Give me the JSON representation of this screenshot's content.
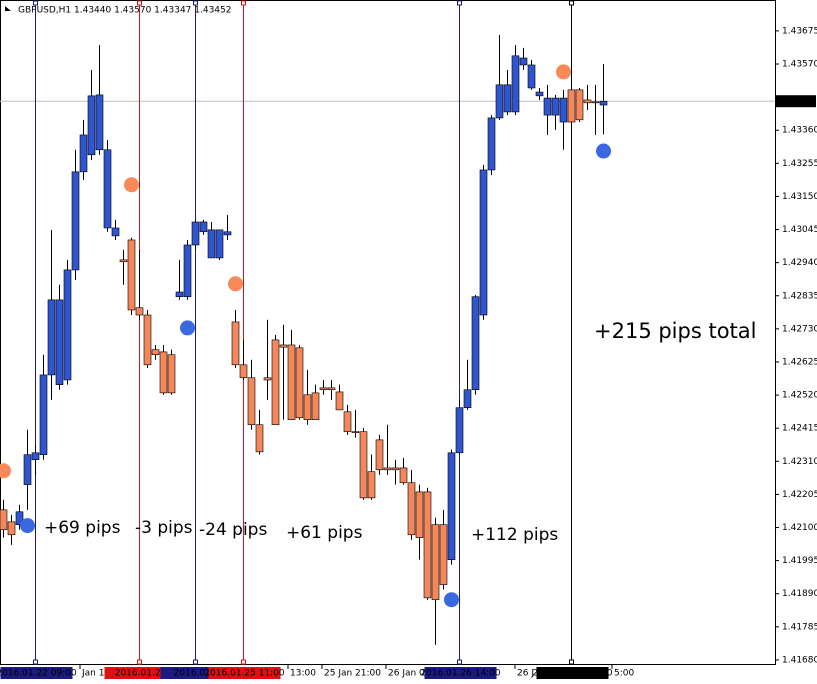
{
  "chart_data": {
    "type": "candlestick",
    "title": "GBPUSD,H1  1.43440 1.43570 1.43347 1.43452",
    "open": [
      1.42156,
      1.42118,
      1.42109,
      1.42236,
      1.42315,
      1.42331,
      1.42584,
      1.42553,
      1.42568,
      1.42917,
      1.43228,
      1.43282,
      1.43298,
      1.43298,
      1.4305,
      1.42949,
      1.43012,
      1.42797,
      1.42774,
      1.42664,
      1.42657,
      1.42648,
      1.42832,
      1.42832,
      1.42996,
      1.43038,
      1.43044,
      1.42955,
      1.43038,
      1.42752,
      1.42616,
      1.42575,
      1.42426,
      1.42568,
      1.42695,
      1.42679,
      1.42679,
      1.4267,
      1.42521,
      1.42527,
      1.42543,
      1.42543,
      1.4253,
      1.42467,
      1.42404,
      1.42404,
      1.42277,
      1.42378,
      1.42283,
      1.42289,
      1.42289,
      1.42242,
      1.42213,
      1.42213,
      1.42109,
      1.42109,
      1.41998,
      1.42337,
      1.4248,
      1.42537,
      1.42774,
      1.43234,
      1.43399,
      1.43418,
      1.43418,
      1.43589,
      1.43567,
      1.43469,
      1.43408,
      1.43462,
      1.43462,
      1.43488,
      1.43488,
      1.43456,
      1.4345,
      1.4344
    ],
    "high": [
      1.42188,
      1.4214,
      1.42172,
      1.4241,
      1.42362,
      1.42648,
      1.43044,
      1.4287,
      1.42949,
      1.43298,
      1.43393,
      1.43551,
      1.4363,
      1.43329,
      1.43076,
      1.42981,
      1.43019,
      1.42981,
      1.4279,
      1.42679,
      1.42679,
      1.42664,
      1.42949,
      1.43012,
      1.43076,
      1.43076,
      1.43069,
      1.43044,
      1.43091,
      1.4279,
      1.42695,
      1.42632,
      1.42473,
      1.42759,
      1.42711,
      1.42743,
      1.42727,
      1.42679,
      1.426,
      1.42553,
      1.42568,
      1.42568,
      1.42553,
      1.42489,
      1.42473,
      1.42416,
      1.42331,
      1.42394,
      1.42426,
      1.42315,
      1.42321,
      1.42283,
      1.42236,
      1.42226,
      1.42131,
      1.42156,
      1.42347,
      1.42505,
      1.42632,
      1.42838,
      1.4325,
      1.43408,
      1.43662,
      1.43551,
      1.4363,
      1.43621,
      1.43583,
      1.43494,
      1.43504,
      1.43472,
      1.43488,
      1.43504,
      1.43494,
      1.43504,
      1.43504,
      1.4357
    ],
    "low": [
      1.42068,
      1.42045,
      1.42093,
      1.42156,
      1.42267,
      1.42315,
      1.42505,
      1.42537,
      1.42553,
      1.42885,
      1.43202,
      1.43266,
      1.43282,
      1.43038,
      1.43012,
      1.4287,
      1.42774,
      1.42759,
      1.42606,
      1.42632,
      1.42521,
      1.42521,
      1.42822,
      1.42822,
      1.42981,
      1.43028,
      1.42955,
      1.42949,
      1.43012,
      1.42606,
      1.42568,
      1.4241,
      1.42331,
      1.42505,
      1.42426,
      1.42442,
      1.42442,
      1.42442,
      1.42426,
      1.42442,
      1.42521,
      1.42505,
      1.42473,
      1.42394,
      1.42385,
      1.42188,
      1.42188,
      1.42267,
      1.42267,
      1.42236,
      1.42236,
      1.42061,
      1.41998,
      1.41871,
      1.41728,
      1.41903,
      1.41982,
      1.42331,
      1.42473,
      1.42521,
      1.42759,
      1.43218,
      1.43393,
      1.43408,
      1.43408,
      1.43551,
      1.43488,
      1.43456,
      1.43345,
      1.43361,
      1.43298,
      1.43361,
      1.43386,
      1.43424,
      1.43345,
      1.43347
    ],
    "close": [
      1.42093,
      1.42077,
      1.4215,
      1.42331,
      1.42337,
      1.42584,
      1.42822,
      1.42822,
      1.42917,
      1.43228,
      1.43345,
      1.43469,
      1.43472,
      1.4305,
      1.43025,
      1.42943,
      1.4279,
      1.42774,
      1.42616,
      1.42648,
      1.42527,
      1.42527,
      1.42847,
      1.42996,
      1.43069,
      1.43069,
      1.42955,
      1.43044,
      1.43028,
      1.42616,
      1.42575,
      1.42426,
      1.4234,
      1.42575,
      1.42426,
      1.42672,
      1.42442,
      1.42448,
      1.42442,
      1.42442,
      1.42537,
      1.42537,
      1.42473,
      1.42404,
      1.42401,
      1.42194,
      1.42194,
      1.42283,
      1.42289,
      1.42283,
      1.42242,
      1.42077,
      1.42068,
      1.41877,
      1.41871,
      1.41919,
      1.42337,
      1.4248,
      1.42537,
      1.42832,
      1.43234,
      1.43399,
      1.43504,
      1.43504,
      1.43596,
      1.43567,
      1.43494,
      1.43481,
      1.43462,
      1.43408,
      1.43386,
      1.43386,
      1.43393,
      1.43447,
      1.43447,
      1.43452
    ],
    "colors": [
      "#f4875a",
      "#f4875a",
      "#2f55cf",
      "#2f55cf",
      "#2f55cf",
      "#2f55cf",
      "#2f55cf",
      "#2f55cf",
      "#2f55cf",
      "#2f55cf",
      "#2f55cf",
      "#2f55cf",
      "#2f55cf",
      "#2f55cf",
      "#2f55cf",
      "#f4875a",
      "#f4875a",
      "#f4875a",
      "#f4875a",
      "#f4875a",
      "#f4875a",
      "#f4875a",
      "#2f55cf",
      "#2f55cf",
      "#2f55cf",
      "#2f55cf",
      "#2f55cf",
      "#2f55cf",
      "#2f55cf",
      "#f4875a",
      "#f4875a",
      "#f4875a",
      "#f4875a",
      "#f4875a",
      "#f4875a",
      "#f4875a",
      "#f4875a",
      "#f4875a",
      "#f4875a",
      "#f4875a",
      "#f4875a",
      "#f4875a",
      "#f4875a",
      "#f4875a",
      "#f4875a",
      "#f4875a",
      "#f4875a",
      "#f4875a",
      "#f4875a",
      "#f4875a",
      "#f4875a",
      "#f4875a",
      "#f4875a",
      "#f4875a",
      "#f4875a",
      "#f4875a",
      "#2f55cf",
      "#2f55cf",
      "#2f55cf",
      "#2f55cf",
      "#2f55cf",
      "#2f55cf",
      "#2f55cf",
      "#2f55cf",
      "#2f55cf",
      "#2f55cf",
      "#2f55cf",
      "#2f55cf",
      "#2f55cf",
      "#2f55cf",
      "#2f55cf",
      "#f4875a",
      "#f4875a",
      "#f4875a",
      "#f4875a",
      "#2f55cf"
    ],
    "ylim": [
      1.41664,
      1.43773
    ],
    "yticks": [
      1.43675,
      {
        "value": 1.4357,
        "label": "1.43570"
      },
      {
        "value": 1.4336,
        "label": "1.43360"
      },
      1.43255,
      {
        "value": 1.4315,
        "label": "1.43150"
      },
      1.43045,
      {
        "value": 1.4294,
        "label": "1.42940"
      },
      1.42835,
      {
        "value": 1.4273,
        "label": "1.42730"
      },
      1.42625,
      {
        "value": 1.4252,
        "label": "1.42520"
      },
      1.42415,
      {
        "value": 1.4231,
        "label": "1.42310"
      },
      1.42205,
      {
        "value": 1.421,
        "label": "1.42100"
      },
      1.41995,
      {
        "value": 1.4189,
        "label": "1.41890"
      },
      1.41785,
      {
        "value": 1.4168,
        "label": "1.41680"
      }
    ],
    "current_price": {
      "value": 1.43452,
      "label": "1.43452"
    },
    "xaxis_labels": [
      "Jan 1",
      "13:00",
      "25 Jan 21:00",
      "26 Jan 0",
      "26 J",
      "5:00"
    ],
    "vlines": [
      {
        "index": 4,
        "color": "#1a1a80",
        "label": "2016.01.22 09:00"
      },
      {
        "index": 17,
        "color": "#e01010",
        "label": "2016.01.22"
      },
      {
        "index": 24,
        "color": "#1a1a80",
        "label": "2016.01.2"
      },
      {
        "index": 30,
        "color": "#e01010",
        "label": "2016.01.25 11:00"
      },
      {
        "index": 57,
        "color": "#1a1a80",
        "label": "2016.01.26 14:00"
      },
      {
        "index": 71,
        "color": "#000000",
        "label": "2016.01.27 04:00"
      }
    ],
    "markers": [
      {
        "index": 0,
        "value": 1.4228,
        "color": "#f88a5a"
      },
      {
        "index": 3,
        "value": 1.42106,
        "color": "#3b68df"
      },
      {
        "index": 16,
        "value": 1.43187,
        "color": "#f88a5a"
      },
      {
        "index": 23,
        "value": 1.42733,
        "color": "#3b68df"
      },
      {
        "index": 29,
        "value": 1.42873,
        "color": "#f88a5a"
      },
      {
        "index": 56,
        "value": 1.41871,
        "color": "#3b68df"
      },
      {
        "index": 70,
        "value": 1.43545,
        "color": "#f88a5a"
      },
      {
        "index": 75,
        "value": 1.43294,
        "color": "#3b68df"
      }
    ],
    "annotations": [
      {
        "text": "+69 pips",
        "color": "#1414c8"
      },
      {
        "text": "-3 pips",
        "color": "#e01010"
      },
      {
        "text": "-24 pips",
        "color": "#1414c8"
      },
      {
        "text": "+61 pips",
        "color": "#e01010"
      },
      {
        "text": "+112 pips",
        "color": "#1414c8"
      },
      {
        "text": "+215 pips total",
        "color": "#000000"
      }
    ]
  }
}
